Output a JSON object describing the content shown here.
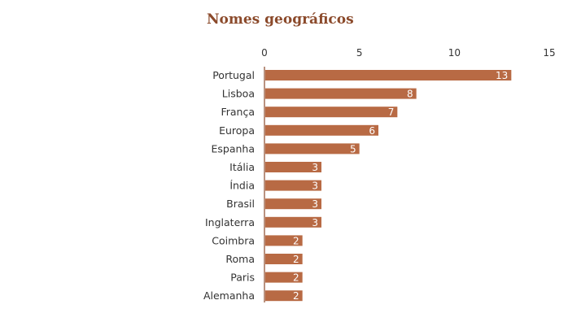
{
  "chart_data": {
    "type": "bar",
    "orientation": "horizontal",
    "title": "Nomes geográficos",
    "xlabel": "",
    "ylabel": "",
    "xlim": [
      0,
      15
    ],
    "ticks": [
      "0",
      "5",
      "10",
      "15"
    ],
    "tick_values": [
      0,
      5,
      10,
      15
    ],
    "categories": [
      "Portugal",
      "Lisboa",
      "França",
      "Europa",
      "Espanha",
      "Itália",
      "Índia",
      "Brasil",
      "Inglaterra",
      "Coimbra",
      "Roma",
      "Paris",
      "Alemanha"
    ],
    "values": [
      13,
      8,
      7,
      6,
      5,
      3,
      3,
      3,
      3,
      2,
      2,
      2,
      2
    ],
    "data_labels": [
      "13",
      "8",
      "7",
      "6",
      "5",
      "3",
      "3",
      "3",
      "3",
      "2",
      "2",
      "2",
      "2"
    ],
    "grid": false,
    "axis_position": "top",
    "bar_color": "#b86a44",
    "title_color": "#8b4a2b"
  }
}
